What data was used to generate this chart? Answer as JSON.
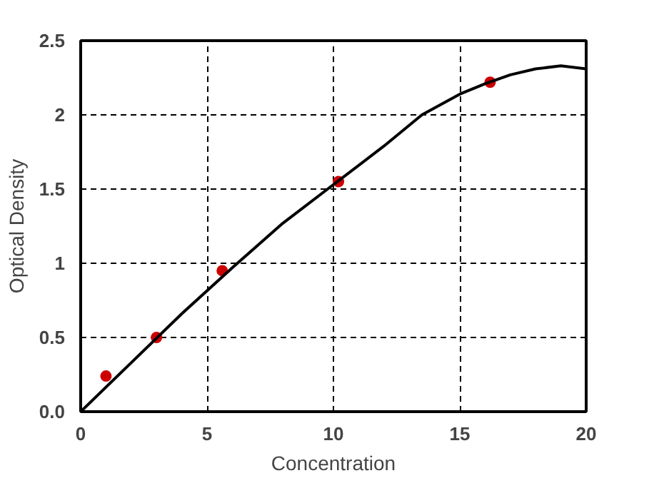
{
  "chart_data": {
    "type": "scatter",
    "xlabel": "Concentration",
    "ylabel": "Optical Density",
    "xlim": [
      0,
      20
    ],
    "ylim": [
      0,
      2.5
    ],
    "xticks": [
      0,
      5,
      10,
      15,
      20
    ],
    "yticks": [
      {
        "value": 0,
        "label": "0.0"
      },
      0.5,
      1,
      1.5,
      2,
      2.5
    ],
    "grid": true,
    "marker": "circle",
    "series": [
      {
        "color": "#cc0000",
        "x": [
          1,
          3,
          5.6,
          10.2,
          16.2
        ],
        "values": [
          0.24,
          0.5,
          0.95,
          1.55,
          2.22
        ]
      },
      {
        "type": "line",
        "color": "#000000",
        "marker": "none",
        "line_style": "solid",
        "x": [
          0,
          2,
          4,
          6,
          8,
          10,
          12,
          13.5,
          15,
          16,
          17,
          18,
          19,
          20
        ],
        "values": [
          0,
          0.33,
          0.66,
          0.97,
          1.27,
          1.53,
          1.79,
          2.0,
          2.14,
          2.21,
          2.27,
          2.31,
          2.33,
          2.31
        ]
      }
    ]
  }
}
